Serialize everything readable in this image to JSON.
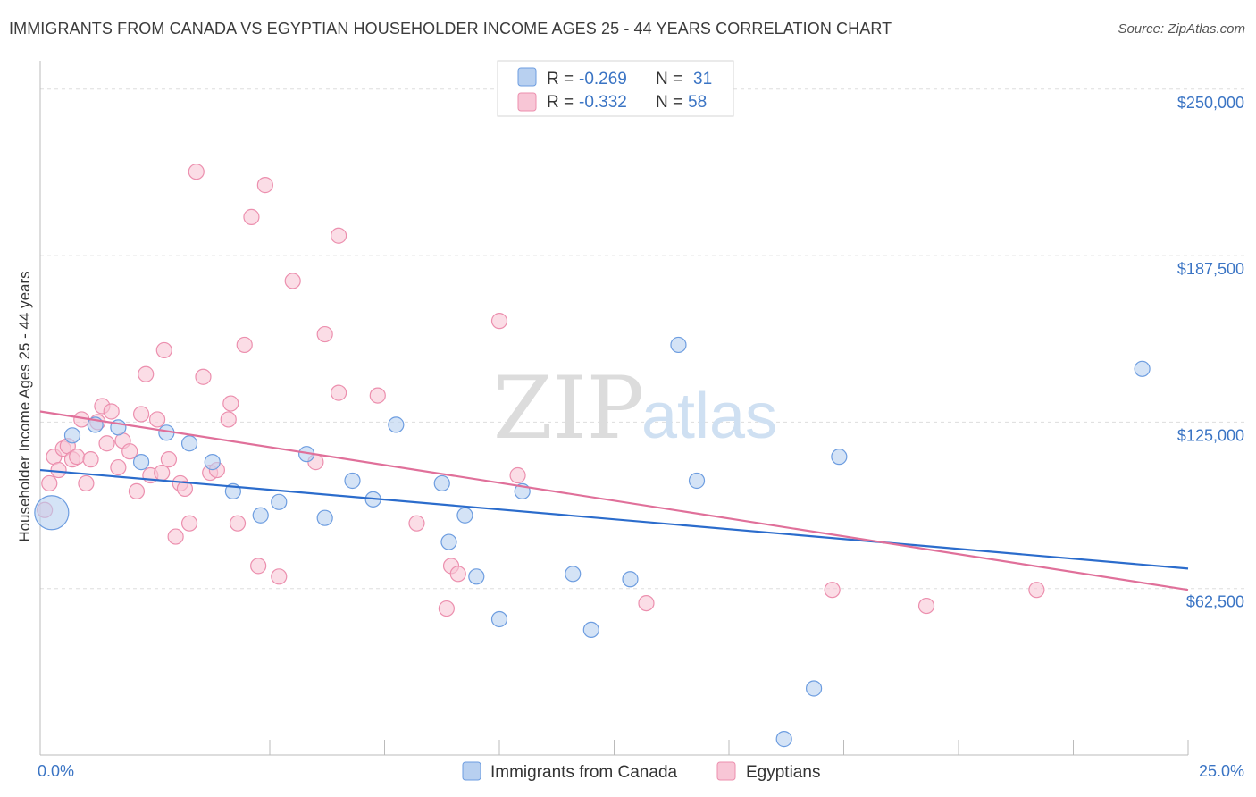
{
  "title": "IMMIGRANTS FROM CANADA VS EGYPTIAN HOUSEHOLDER INCOME AGES 25 - 44 YEARS CORRELATION CHART",
  "source": "Source: ZipAtlas.com",
  "watermark": {
    "zip": "ZIP",
    "atlas": "atlas"
  },
  "colors": {
    "blue_fill": "#b8d0f0",
    "blue_stroke": "#6d9de0",
    "blue_line": "#2b6ccc",
    "pink_fill": "#f8c6d6",
    "pink_stroke": "#ec8fae",
    "pink_line": "#e0709a",
    "axis_text": "#3a74c4",
    "grid": "#dddddd"
  },
  "legend": {
    "rows": [
      {
        "r_label": "R = ",
        "r_value": "-0.269",
        "n_label": "N = ",
        "n_value": "31"
      },
      {
        "r_label": "R = ",
        "r_value": "-0.332",
        "n_label": "N = ",
        "n_value": "58"
      }
    ]
  },
  "chart_data": {
    "type": "scatter",
    "xlabel": "",
    "ylabel": "Householder Income Ages 25 - 44 years",
    "xlim": [
      0,
      25
    ],
    "ylim": [
      0,
      260000
    ],
    "x_tick_labels": [
      {
        "value": 0,
        "label": "0.0%"
      },
      {
        "value": 25,
        "label": "25.0%"
      }
    ],
    "y_ticks": [
      {
        "value": 62500,
        "label": "$62,500"
      },
      {
        "value": 125000,
        "label": "$125,000"
      },
      {
        "value": 187500,
        "label": "$187,500"
      },
      {
        "value": 250000,
        "label": "$250,000"
      }
    ],
    "grid": true,
    "legend_position": "top-center",
    "series": [
      {
        "name": "Immigrants from Canada",
        "color": "blue",
        "trend": {
          "x": [
            0,
            25
          ],
          "y": [
            107000,
            70000
          ]
        },
        "points": [
          {
            "x": 0.25,
            "y": 91000,
            "big": true
          },
          {
            "x": 0.7,
            "y": 120000
          },
          {
            "x": 1.2,
            "y": 124000
          },
          {
            "x": 1.7,
            "y": 123000
          },
          {
            "x": 2.2,
            "y": 110000
          },
          {
            "x": 2.75,
            "y": 121000
          },
          {
            "x": 3.25,
            "y": 117000
          },
          {
            "x": 3.75,
            "y": 110000
          },
          {
            "x": 4.2,
            "y": 99000
          },
          {
            "x": 4.8,
            "y": 90000
          },
          {
            "x": 5.2,
            "y": 95000
          },
          {
            "x": 5.8,
            "y": 113000
          },
          {
            "x": 6.2,
            "y": 89000
          },
          {
            "x": 6.8,
            "y": 103000
          },
          {
            "x": 7.25,
            "y": 96000
          },
          {
            "x": 7.75,
            "y": 124000
          },
          {
            "x": 8.75,
            "y": 102000
          },
          {
            "x": 8.9,
            "y": 80000
          },
          {
            "x": 9.25,
            "y": 90000
          },
          {
            "x": 9.5,
            "y": 67000
          },
          {
            "x": 10.0,
            "y": 51000
          },
          {
            "x": 10.5,
            "y": 99000
          },
          {
            "x": 11.6,
            "y": 68000
          },
          {
            "x": 12.0,
            "y": 47000
          },
          {
            "x": 12.85,
            "y": 66000
          },
          {
            "x": 13.9,
            "y": 154000
          },
          {
            "x": 14.3,
            "y": 103000
          },
          {
            "x": 16.2,
            "y": 6000
          },
          {
            "x": 16.85,
            "y": 25000
          },
          {
            "x": 17.4,
            "y": 112000
          },
          {
            "x": 24.0,
            "y": 145000
          }
        ]
      },
      {
        "name": "Egyptians",
        "color": "pink",
        "trend": {
          "x": [
            0,
            25
          ],
          "y": [
            129000,
            62000
          ]
        },
        "points": [
          {
            "x": 0.1,
            "y": 92000
          },
          {
            "x": 0.2,
            "y": 102000
          },
          {
            "x": 0.3,
            "y": 112000
          },
          {
            "x": 0.4,
            "y": 107000
          },
          {
            "x": 0.5,
            "y": 115000
          },
          {
            "x": 0.6,
            "y": 116000
          },
          {
            "x": 0.7,
            "y": 111000
          },
          {
            "x": 0.8,
            "y": 112000
          },
          {
            "x": 0.9,
            "y": 126000
          },
          {
            "x": 1.0,
            "y": 102000
          },
          {
            "x": 1.1,
            "y": 111000
          },
          {
            "x": 1.25,
            "y": 125000
          },
          {
            "x": 1.35,
            "y": 131000
          },
          {
            "x": 1.45,
            "y": 117000
          },
          {
            "x": 1.55,
            "y": 129000
          },
          {
            "x": 1.7,
            "y": 108000
          },
          {
            "x": 1.8,
            "y": 118000
          },
          {
            "x": 1.95,
            "y": 114000
          },
          {
            "x": 2.1,
            "y": 99000
          },
          {
            "x": 2.2,
            "y": 128000
          },
          {
            "x": 2.3,
            "y": 143000
          },
          {
            "x": 2.4,
            "y": 105000
          },
          {
            "x": 2.55,
            "y": 126000
          },
          {
            "x": 2.65,
            "y": 106000
          },
          {
            "x": 2.7,
            "y": 152000
          },
          {
            "x": 2.8,
            "y": 111000
          },
          {
            "x": 2.95,
            "y": 82000
          },
          {
            "x": 3.05,
            "y": 102000
          },
          {
            "x": 3.15,
            "y": 100000
          },
          {
            "x": 3.25,
            "y": 87000
          },
          {
            "x": 3.4,
            "y": 219000
          },
          {
            "x": 3.55,
            "y": 142000
          },
          {
            "x": 3.7,
            "y": 106000
          },
          {
            "x": 3.85,
            "y": 107000
          },
          {
            "x": 4.1,
            "y": 126000
          },
          {
            "x": 4.15,
            "y": 132000
          },
          {
            "x": 4.3,
            "y": 87000
          },
          {
            "x": 4.45,
            "y": 154000
          },
          {
            "x": 4.6,
            "y": 202000
          },
          {
            "x": 4.75,
            "y": 71000
          },
          {
            "x": 4.9,
            "y": 214000
          },
          {
            "x": 5.2,
            "y": 67000
          },
          {
            "x": 5.5,
            "y": 178000
          },
          {
            "x": 6.0,
            "y": 110000
          },
          {
            "x": 6.2,
            "y": 158000
          },
          {
            "x": 6.5,
            "y": 195000
          },
          {
            "x": 6.5,
            "y": 136000
          },
          {
            "x": 7.35,
            "y": 135000
          },
          {
            "x": 8.2,
            "y": 87000
          },
          {
            "x": 8.85,
            "y": 55000
          },
          {
            "x": 8.95,
            "y": 71000
          },
          {
            "x": 9.1,
            "y": 68000
          },
          {
            "x": 10.0,
            "y": 163000
          },
          {
            "x": 10.4,
            "y": 105000
          },
          {
            "x": 13.2,
            "y": 57000
          },
          {
            "x": 17.25,
            "y": 62000
          },
          {
            "x": 19.3,
            "y": 56000
          },
          {
            "x": 21.7,
            "y": 62000
          }
        ]
      }
    ]
  }
}
